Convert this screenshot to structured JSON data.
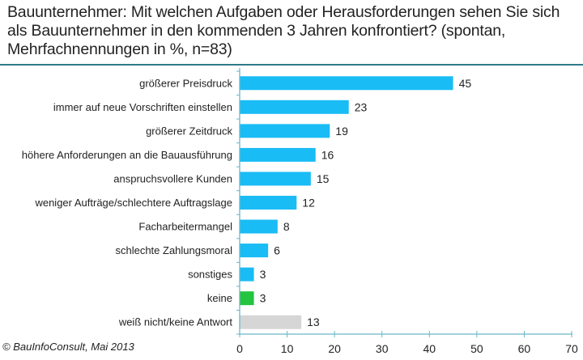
{
  "title": "Bauunternehmer: Mit welchen Aufgaben oder Herausforderungen sehen Sie sich als Bauunternehmer in den kommenden 3 Jahren konfrontiert?  (spontan, Mehrfachnennungen in %, n=83)",
  "footer": "© BauInfoConsult,  Mai 2013",
  "colors": {
    "bar_default": "#1abcf5",
    "bar_none": "#22c440",
    "bar_unknown": "#d6d6d6",
    "axis": "#6bb8c8",
    "divider": "#2e7a8a"
  },
  "chart_data": {
    "type": "bar",
    "orientation": "horizontal",
    "title": "Bauunternehmer: Mit welchen Aufgaben oder Herausforderungen sehen Sie sich als Bauunternehmer in den kommenden 3 Jahren konfrontiert?  (spontan, Mehrfachnennungen in %, n=83)",
    "xlabel": "",
    "ylabel": "",
    "xlim": [
      0,
      70
    ],
    "xticks": [
      0,
      10,
      20,
      30,
      40,
      50,
      60,
      70
    ],
    "grid": false,
    "categories": [
      "größerer Preisdruck",
      "immer auf neue Vorschriften einstellen",
      "größerer Zeitdruck",
      "höhere Anforderungen an die Bauausführung",
      "anspruchsvollere Kunden",
      "weniger Aufträge/schlechtere Auftragslage",
      "Facharbeitermangel",
      "schlechte Zahlungsmoral",
      "sonstiges",
      "keine",
      "weiß nicht/keine Antwort"
    ],
    "values": [
      45,
      23,
      19,
      16,
      15,
      12,
      8,
      6,
      3,
      3,
      13
    ],
    "bar_color_keys": [
      "bar_default",
      "bar_default",
      "bar_default",
      "bar_default",
      "bar_default",
      "bar_default",
      "bar_default",
      "bar_default",
      "bar_default",
      "bar_none",
      "bar_unknown"
    ]
  }
}
